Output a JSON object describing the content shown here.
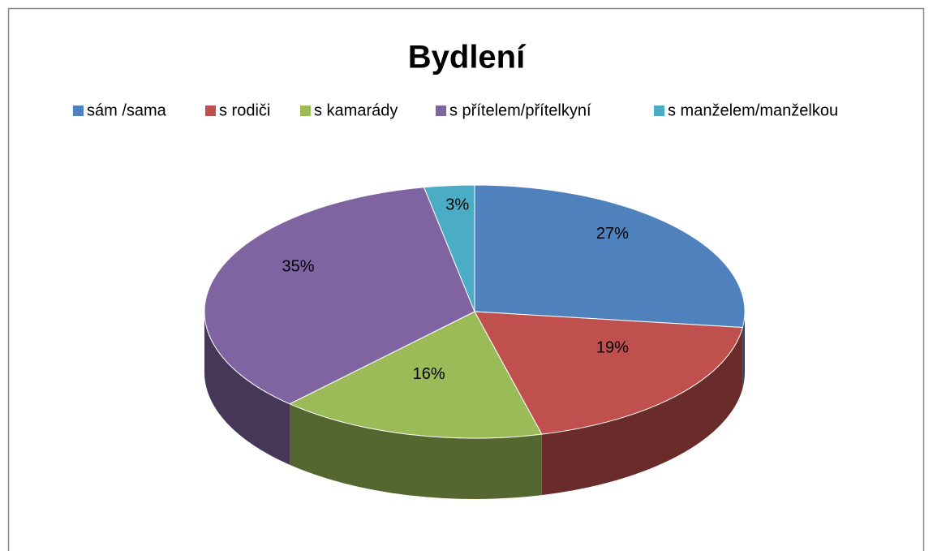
{
  "chart_data": {
    "type": "pie",
    "title": "Bydlení",
    "categories": [
      "sám /sama",
      "s rodiči",
      "s kamarády",
      "s přítelem/přítelkyní",
      "s manželem/manželkou"
    ],
    "values": [
      27,
      19,
      16,
      35,
      3
    ],
    "value_labels": [
      "27%",
      "19%",
      "16%",
      "35%",
      "3%"
    ],
    "colors": [
      "#4f81bd",
      "#c0504d",
      "#9bbb59",
      "#8064a2",
      "#4bacc6"
    ],
    "legend": "top"
  }
}
